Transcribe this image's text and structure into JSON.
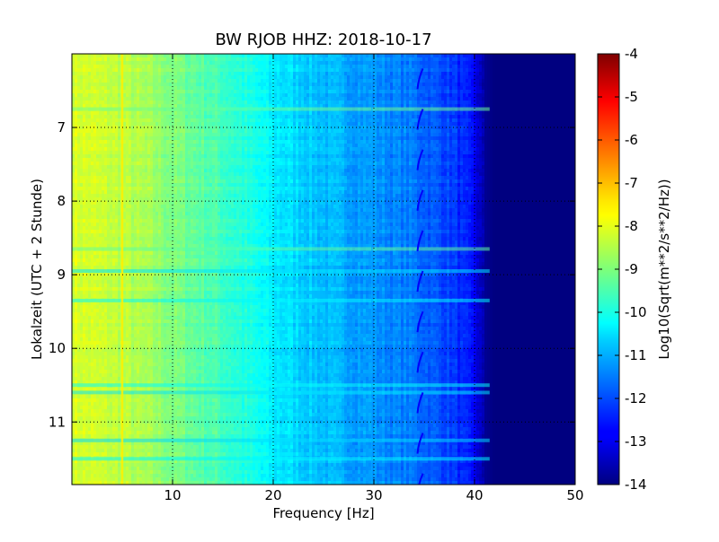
{
  "chart_data": {
    "type": "heatmap",
    "title": "BW RJOB HHZ: 2018-10-17",
    "xlabel": "Frequency [Hz]",
    "ylabel": "Lokalzeit (UTC + 2 Stunde)",
    "colorbar_label": "Log10(Sqrt(m**2/s**2/Hz))",
    "xlim": [
      0,
      50
    ],
    "ylim": [
      6.0,
      11.85
    ],
    "y_inverted": true,
    "x_ticks": [
      10,
      20,
      30,
      40,
      50
    ],
    "y_ticks": [
      7,
      8,
      9,
      10,
      11
    ],
    "grid": true,
    "colormap": "jet",
    "color_range": [
      -14,
      -4
    ],
    "colorbar_ticks": [
      -4,
      -5,
      -6,
      -7,
      -8,
      -9,
      -10,
      -11,
      -12,
      -13,
      -14
    ],
    "frequency_profile": {
      "x": [
        0,
        2,
        5,
        8,
        10,
        15,
        20,
        25,
        30,
        34,
        38,
        40,
        41,
        42,
        50
      ],
      "values": [
        -8.1,
        -8.2,
        -8.4,
        -8.7,
        -9.0,
        -9.6,
        -10.4,
        -10.9,
        -11.3,
        -11.6,
        -12.2,
        -12.8,
        -13.8,
        -14.0,
        -14.0
      ]
    },
    "features": {
      "line_5hz": {
        "x": 5.0,
        "value": -7.6
      },
      "line_35hz": {
        "x": 34.6,
        "value": -12.8
      },
      "line_30hz": {
        "x": 29.8,
        "value": -11.0
      },
      "noise_bursts": [
        {
          "time": 6.75,
          "value": -9.2
        },
        {
          "time": 8.65,
          "value": -9.3
        },
        {
          "time": 8.95,
          "value": -10.5
        },
        {
          "time": 9.35,
          "value": -10.3
        },
        {
          "time": 10.5,
          "value": -10.2
        },
        {
          "time": 10.6,
          "value": -10.5
        },
        {
          "time": 11.25,
          "value": -10.6
        },
        {
          "time": 11.5,
          "value": -10.3
        }
      ]
    }
  }
}
